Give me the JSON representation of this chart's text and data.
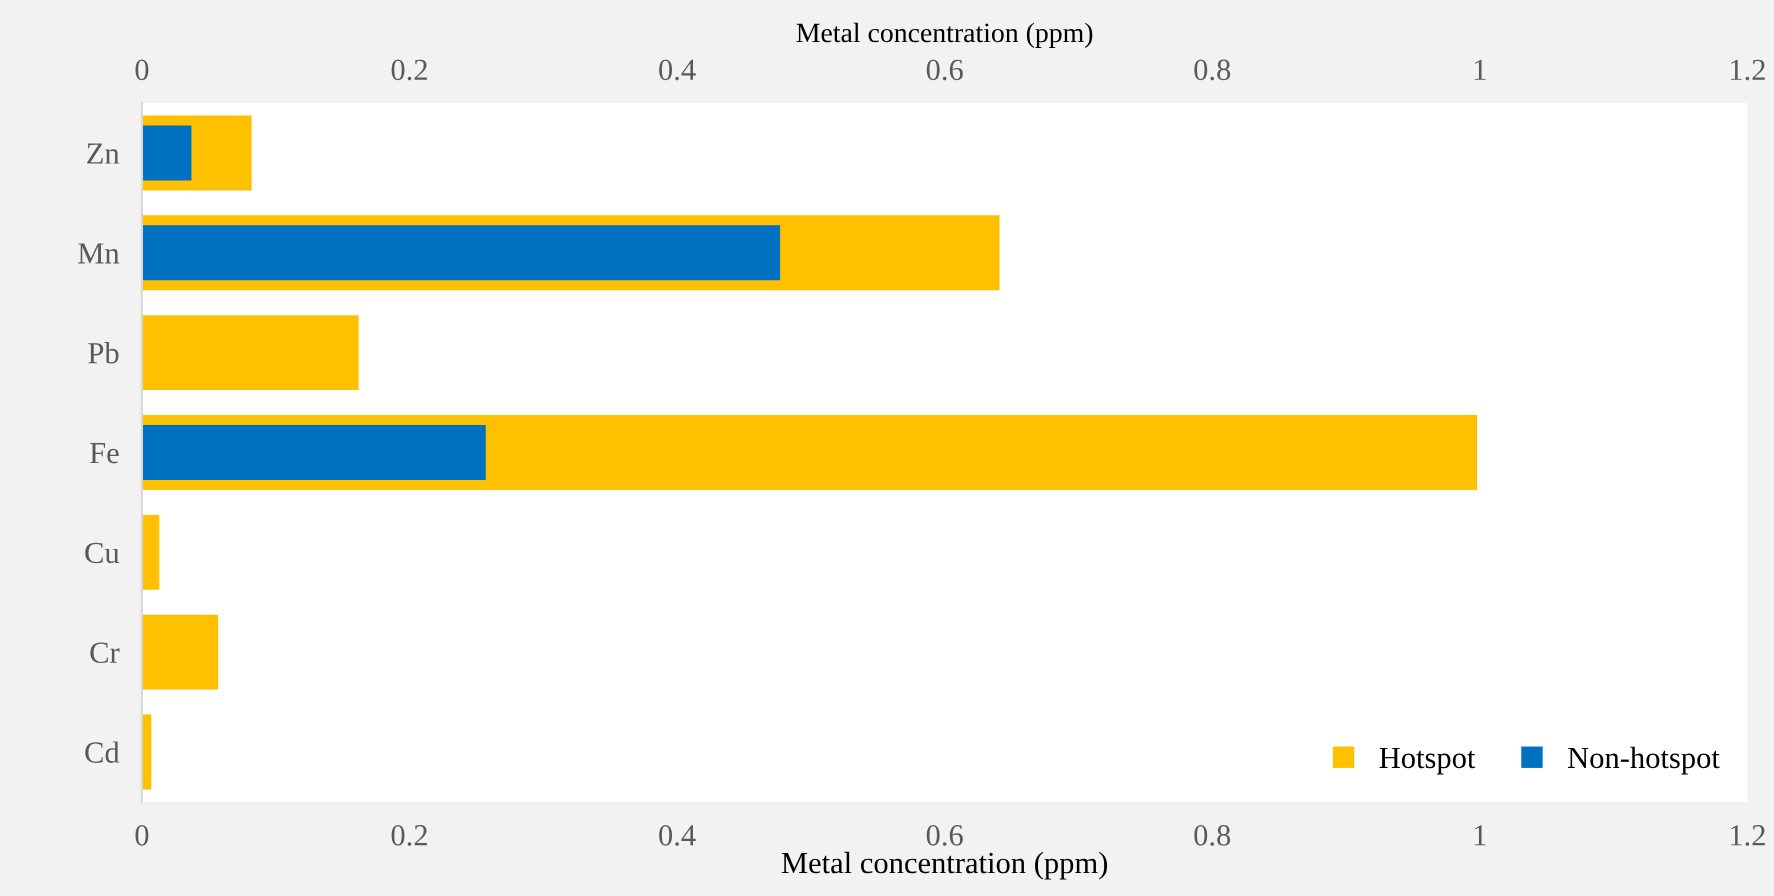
{
  "chart_data": {
    "type": "bar",
    "orientation": "horizontal",
    "categories": [
      "Zn",
      "Mn",
      "Pb",
      "Fe",
      "Cu",
      "Cr",
      "Cd"
    ],
    "series": [
      {
        "name": "Hotspot",
        "color": "#ffc000",
        "values": [
          0.082,
          0.641,
          0.162,
          0.998,
          0.013,
          0.057,
          0.007
        ]
      },
      {
        "name": "Non-hotspot",
        "color": "#0070c0",
        "values": [
          0.037,
          0.477,
          null,
          0.257,
          null,
          null,
          null
        ]
      }
    ],
    "xlabel": "Metal concentration (ppm)",
    "x2label": "Metal concentration (ppm)",
    "xlim": [
      0,
      1.2
    ],
    "xticks": [
      0,
      0.2,
      0.4,
      0.6,
      0.8,
      1,
      1.2
    ],
    "x2lim": [
      0,
      1.2
    ],
    "x2ticks": [
      0,
      0.2,
      0.4,
      0.6,
      0.8,
      1,
      1.2
    ],
    "grid": false,
    "legend": "bottom right"
  }
}
